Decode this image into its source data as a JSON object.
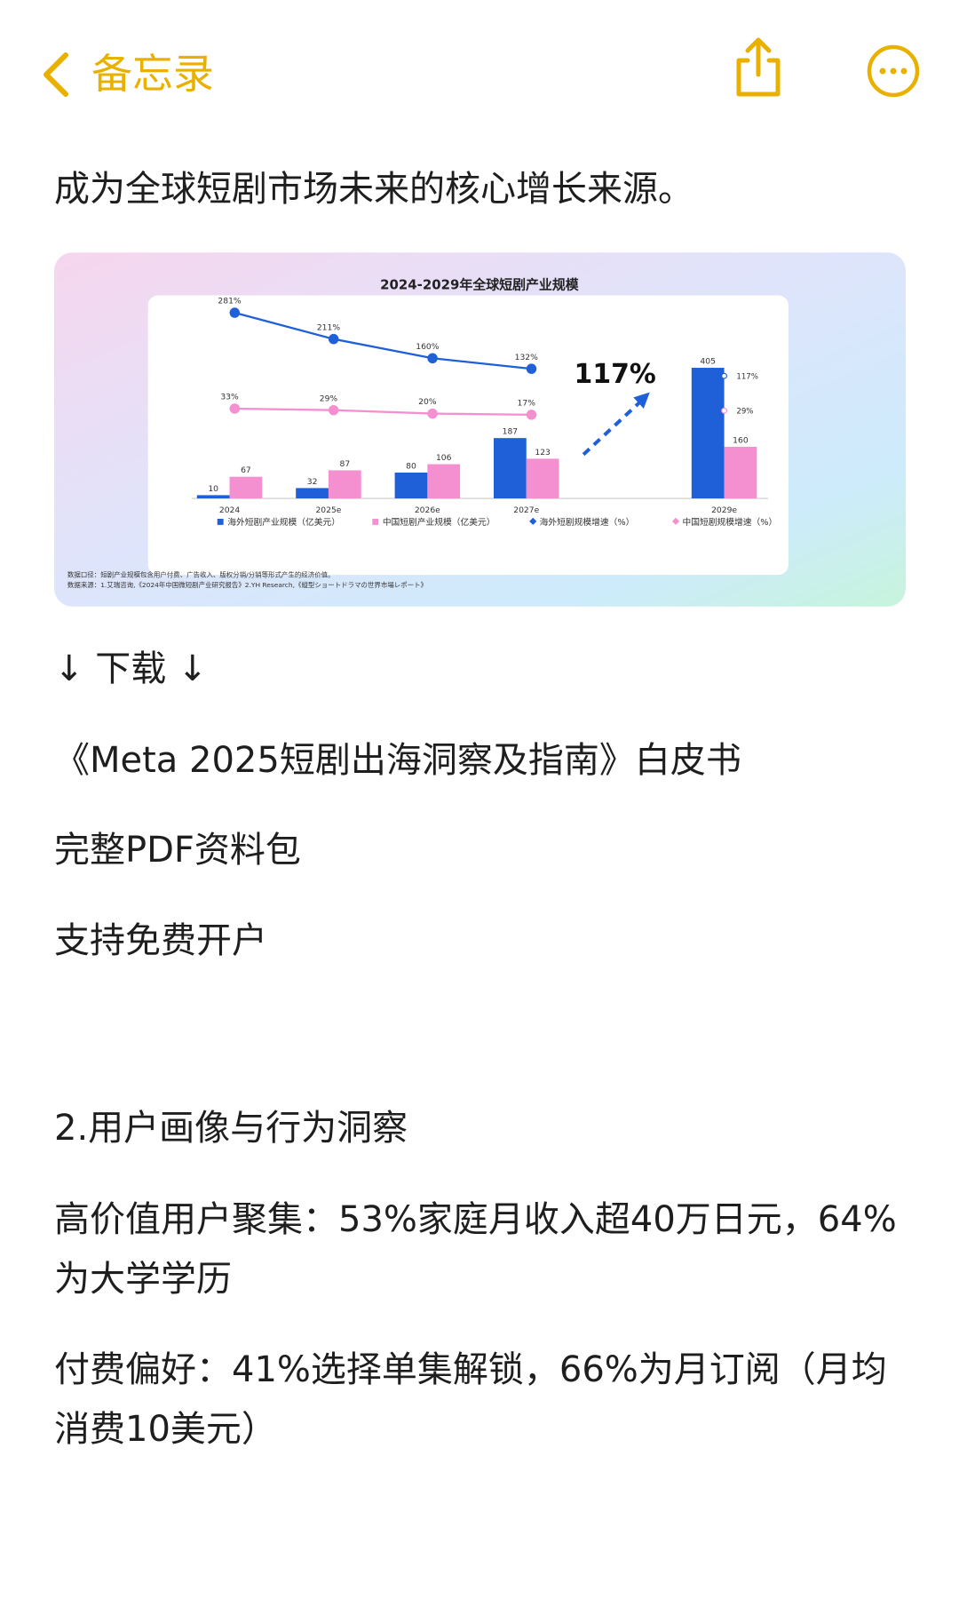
{
  "header": {
    "back": "备忘录"
  },
  "note": {
    "intro": "成为全球短剧市场未来的核心增长来源。",
    "download": "↓ 下载 ↓",
    "lines": [
      "《Meta 2025短剧出海洞察及指南》白皮书",
      "完整PDF资料包",
      "支持免费开户"
    ],
    "section": "2.用户画像与行为洞察",
    "paragraphs": [
      "高价值用户聚集：53%家庭月收入超40万日元，64%为大学学历",
      "付费偏好：41%选择单集解锁，66%为月订阅（月均消费10美元）"
    ]
  },
  "chart": {
    "type": "bar",
    "title": "2024-2029年全球短剧产业规模",
    "categories": [
      "2024",
      "2025e",
      "2026e",
      "2027e",
      "2029e"
    ],
    "series": [
      {
        "name": "海外短剧产业规模（亿美元）",
        "type": "bar",
        "color": "#1f5fd8",
        "values": [
          10,
          32,
          80,
          187,
          405
        ]
      },
      {
        "name": "中国短剧产业规模（亿美元）",
        "type": "bar",
        "color": "#f48fd0",
        "values": [
          67,
          87,
          106,
          123,
          160
        ]
      },
      {
        "name": "海外短剧规模增速（%）",
        "type": "line",
        "color": "#1f5fd8",
        "values": [
          281,
          211,
          160,
          132,
          117
        ],
        "value_labels": [
          "281%",
          "211%",
          "160%",
          "132%",
          "117%"
        ]
      },
      {
        "name": "中国短剧规模增速（%）",
        "type": "line",
        "color": "#f48fd0",
        "values": [
          33,
          29,
          20,
          17,
          29
        ],
        "value_labels": [
          "33%",
          "29%",
          "20%",
          "17%",
          "29%"
        ]
      }
    ],
    "annotation": "117%",
    "footnotes": [
      "数据口径：短剧产业规模包含用户付费、广告收入、版权分销/分销等形式产生的经济价值。",
      "数据来源：1.艾瑞咨询,《2024年中国微短剧产业研究报告》2.YH Research,《縦型ショートドラマの世界市場レポート》"
    ]
  }
}
